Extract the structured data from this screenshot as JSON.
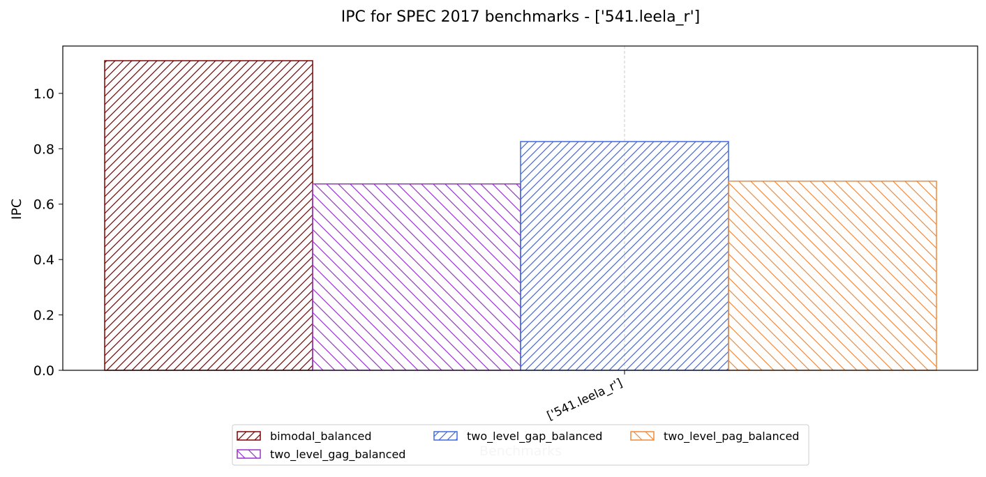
{
  "chart_data": {
    "type": "bar",
    "title": "IPC for SPEC 2017 benchmarks - ['541.leela_r']",
    "x_label": "Benchmarks",
    "y_label": "IPC",
    "categories": [
      "['541.leela_r']"
    ],
    "series": [
      {
        "name": "bimodal_balanced",
        "color": "#800000",
        "hatch": "///",
        "values": [
          1.118
        ]
      },
      {
        "name": "two_level_gag_balanced",
        "color": "#9932cc",
        "hatch": "\\\\",
        "values": [
          0.673
        ]
      },
      {
        "name": "two_level_gap_balanced",
        "color": "#4169e1",
        "hatch": "///",
        "values": [
          0.826
        ]
      },
      {
        "name": "two_level_pag_balanced",
        "color": "#f08a3c",
        "hatch": "\\\\",
        "values": [
          0.683
        ]
      }
    ],
    "ylim": [
      0,
      1.171
    ],
    "yticks": [
      {
        "value": 0,
        "label": "0.0"
      },
      0.2,
      0.4,
      0.6,
      0.8,
      {
        "value": 1,
        "label": "1.0"
      }
    ],
    "xgrid": true,
    "legend": "lower center"
  }
}
